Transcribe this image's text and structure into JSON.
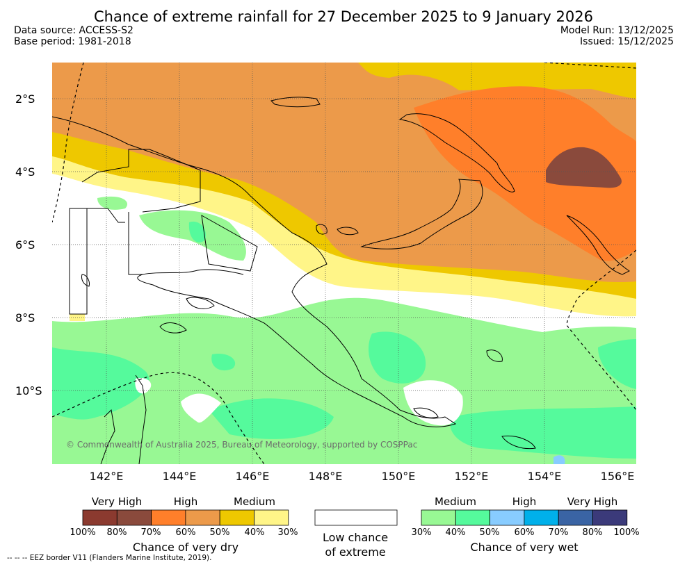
{
  "title": "Chance of extreme rainfall for 27 December 2025 to 9 January 2026",
  "data_source": "Data source: ACCESS-S2",
  "base_period": "Base period: 1981-2018",
  "model_run": "Model Run: 13/12/2025",
  "issued": "Issued: 15/12/2025",
  "lat_ticks": [
    "2°S",
    "4°S",
    "6°S",
    "8°S",
    "10°S"
  ],
  "lon_ticks": [
    "142°E",
    "144°E",
    "146°E",
    "148°E",
    "150°E",
    "152°E",
    "154°E",
    "156°E"
  ],
  "copyright": "© Commonwealth of Australia 2025, Bureau of Meteorology, supported by COSPPac",
  "legend": {
    "dry": {
      "levels": [
        "Very High",
        "High",
        "Medium"
      ],
      "percentages": [
        "100%",
        "80%",
        "70%",
        "60%",
        "50%",
        "40%",
        "30%"
      ],
      "title": "Chance of very dry",
      "colors": [
        "#8b3a2f",
        "#8a4a3c",
        "#ff7f2a",
        "#ec9a4a",
        "#eec800",
        "#fff588"
      ]
    },
    "neutral": {
      "title_line1": "Low chance",
      "title_line2": "of extreme",
      "color": "#ffffff"
    },
    "wet": {
      "levels": [
        "Medium",
        "High",
        "Very High"
      ],
      "percentages": [
        "30%",
        "40%",
        "50%",
        "60%",
        "70%",
        "80%",
        "100%"
      ],
      "title": "Chance of very wet",
      "colors": [
        "#98f894",
        "#55fa9c",
        "#88ccff",
        "#00b0ea",
        "#3a64a4",
        "#3b3a7a"
      ]
    }
  },
  "eez_note": "-- -- -- EEZ border V11 (Flanders Marine Institute, 2019)."
}
